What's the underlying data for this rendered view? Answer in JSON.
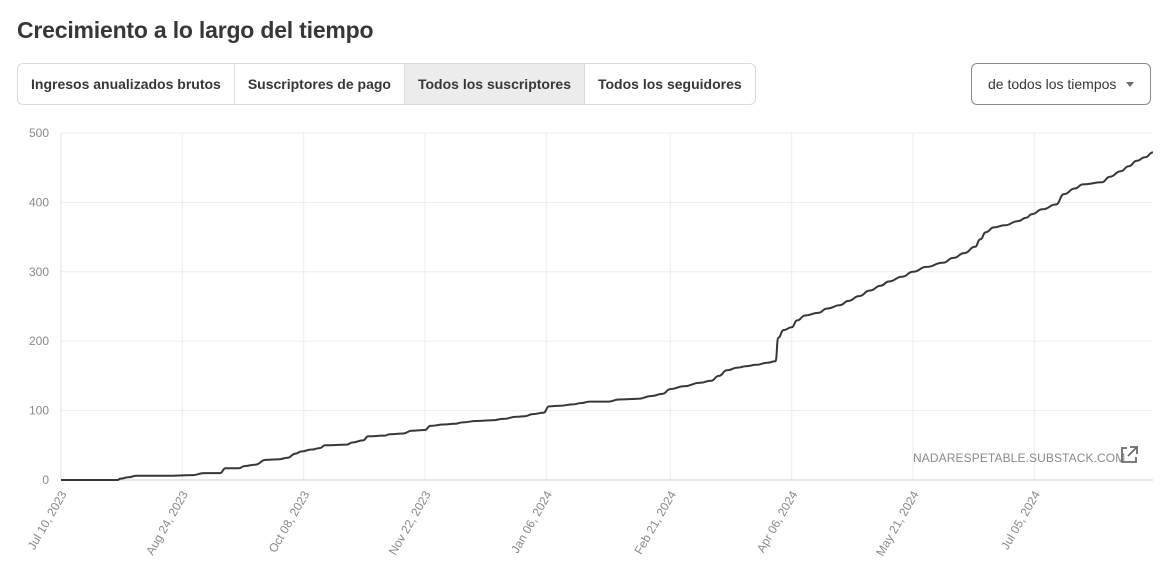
{
  "page": {
    "title": "Crecimiento a lo largo del tiempo"
  },
  "tabs": [
    {
      "label": "Ingresos anualizados brutos",
      "active": false
    },
    {
      "label": "Suscriptores de pago",
      "active": false
    },
    {
      "label": "Todos los suscriptores",
      "active": true
    },
    {
      "label": "Todos los seguidores",
      "active": false
    }
  ],
  "range_select": {
    "value": "de todos los tiempos",
    "icon": "caret-down-icon"
  },
  "watermark": {
    "text": "NADARESPETABLE.SUBSTACK.COM",
    "icon": "external-link-icon"
  },
  "colors": {
    "line": "#363737",
    "grid": "#ededed",
    "axis_text": "#8a8a8a",
    "active_tab_bg": "#ececec"
  },
  "chart_data": {
    "type": "line",
    "title": "",
    "xlabel": "",
    "ylabel": "",
    "ylim": [
      0,
      500
    ],
    "yticks": [
      0,
      100,
      200,
      300,
      400,
      500
    ],
    "xticks": [
      "2023-07-10",
      "2023-08-24",
      "2023-10-08",
      "2023-11-22",
      "2024-01-06",
      "2024-02-21",
      "2024-04-06",
      "2024-05-21",
      "2024-07-05"
    ],
    "xtick_labels": [
      "Jul 10, 2023",
      "Aug 24, 2023",
      "Oct 08, 2023",
      "Nov 22, 2023",
      "Jan 06, 2024",
      "Feb 21, 2024",
      "Apr 06, 2024",
      "May 21, 2024",
      "Jul 05, 2024"
    ],
    "xlim": [
      "2023-07-10",
      "2024-08-18"
    ],
    "grid": true,
    "series": [
      {
        "points": [
          [
            "2023-07-10",
            0
          ],
          [
            "2023-07-31",
            0
          ],
          [
            "2023-08-01",
            2
          ],
          [
            "2023-08-04",
            4
          ],
          [
            "2023-08-07",
            6
          ],
          [
            "2023-08-18",
            6
          ],
          [
            "2023-08-28",
            7
          ],
          [
            "2023-09-01",
            10
          ],
          [
            "2023-09-07",
            10
          ],
          [
            "2023-09-09",
            17
          ],
          [
            "2023-09-14",
            17
          ],
          [
            "2023-09-16",
            20
          ],
          [
            "2023-09-20",
            22
          ],
          [
            "2023-09-24",
            29
          ],
          [
            "2023-09-29",
            30
          ],
          [
            "2023-10-02",
            32
          ],
          [
            "2023-10-05",
            38
          ],
          [
            "2023-10-07",
            41
          ],
          [
            "2023-10-11",
            44
          ],
          [
            "2023-10-14",
            46
          ],
          [
            "2023-10-16",
            50
          ],
          [
            "2023-10-24",
            51
          ],
          [
            "2023-10-26",
            54
          ],
          [
            "2023-10-30",
            57
          ],
          [
            "2023-11-01",
            63
          ],
          [
            "2023-11-07",
            64
          ],
          [
            "2023-11-09",
            66
          ],
          [
            "2023-11-14",
            67
          ],
          [
            "2023-11-17",
            71
          ],
          [
            "2023-11-22",
            72
          ],
          [
            "2023-11-24",
            78
          ],
          [
            "2023-11-29",
            80
          ],
          [
            "2023-12-03",
            81
          ],
          [
            "2023-12-06",
            83
          ],
          [
            "2023-12-11",
            85
          ],
          [
            "2023-12-17",
            86
          ],
          [
            "2023-12-21",
            88
          ],
          [
            "2023-12-26",
            91
          ],
          [
            "2023-12-29",
            92
          ],
          [
            "2024-01-01",
            95
          ],
          [
            "2024-01-05",
            97
          ],
          [
            "2024-01-07",
            106
          ],
          [
            "2024-01-11",
            107
          ],
          [
            "2024-01-16",
            109
          ],
          [
            "2024-01-19",
            111
          ],
          [
            "2024-01-22",
            113
          ],
          [
            "2024-01-29",
            113
          ],
          [
            "2024-02-02",
            116
          ],
          [
            "2024-02-09",
            117
          ],
          [
            "2024-02-14",
            121
          ],
          [
            "2024-02-18",
            124
          ],
          [
            "2024-02-21",
            131
          ],
          [
            "2024-02-26",
            135
          ],
          [
            "2024-03-03",
            140
          ],
          [
            "2024-03-07",
            143
          ],
          [
            "2024-03-10",
            150
          ],
          [
            "2024-03-13",
            158
          ],
          [
            "2024-03-17",
            162
          ],
          [
            "2024-03-20",
            164
          ],
          [
            "2024-03-24",
            166
          ],
          [
            "2024-03-28",
            169
          ],
          [
            "2024-03-31",
            171
          ],
          [
            "2024-04-01",
            205
          ],
          [
            "2024-04-03",
            216
          ],
          [
            "2024-04-06",
            220
          ],
          [
            "2024-04-08",
            230
          ],
          [
            "2024-04-11",
            237
          ],
          [
            "2024-04-16",
            241
          ],
          [
            "2024-04-19",
            247
          ],
          [
            "2024-04-24",
            252
          ],
          [
            "2024-04-27",
            258
          ],
          [
            "2024-05-01",
            265
          ],
          [
            "2024-05-05",
            273
          ],
          [
            "2024-05-09",
            280
          ],
          [
            "2024-05-12",
            286
          ],
          [
            "2024-05-17",
            293
          ],
          [
            "2024-05-21",
            300
          ],
          [
            "2024-05-26",
            307
          ],
          [
            "2024-06-01",
            313
          ],
          [
            "2024-06-05",
            320
          ],
          [
            "2024-06-09",
            327
          ],
          [
            "2024-06-13",
            336
          ],
          [
            "2024-06-15",
            347
          ],
          [
            "2024-06-17",
            357
          ],
          [
            "2024-06-20",
            364
          ],
          [
            "2024-06-24",
            367
          ],
          [
            "2024-06-29",
            373
          ],
          [
            "2024-07-02",
            378
          ],
          [
            "2024-07-04",
            383
          ],
          [
            "2024-07-08",
            390
          ],
          [
            "2024-07-13",
            397
          ],
          [
            "2024-07-16",
            412
          ],
          [
            "2024-07-20",
            420
          ],
          [
            "2024-07-23",
            426
          ],
          [
            "2024-07-30",
            429
          ],
          [
            "2024-08-02",
            437
          ],
          [
            "2024-08-06",
            445
          ],
          [
            "2024-08-09",
            452
          ],
          [
            "2024-08-12",
            460
          ],
          [
            "2024-08-15",
            465
          ],
          [
            "2024-08-18",
            472
          ]
        ]
      }
    ]
  }
}
